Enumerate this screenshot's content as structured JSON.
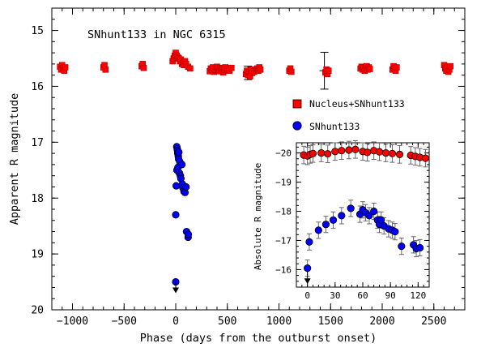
{
  "chart_data": [
    {
      "type": "scatter",
      "title": "SNhunt133 in NGC 6315",
      "xlabel": "Phase (days from the outburst onset)",
      "ylabel": "Apparent R magnitude",
      "xlim": [
        -1200,
        2800
      ],
      "ylim": [
        20,
        14.6
      ],
      "y_inverted": true,
      "x_ticks": [
        -1000,
        -500,
        0,
        500,
        1000,
        1500,
        2000,
        2500
      ],
      "y_ticks": [
        15,
        16,
        17,
        18,
        19,
        20
      ],
      "x_tick_labels": [
        "−1000",
        "−500",
        "0",
        "500",
        "1000",
        "1500",
        "2000",
        "2500"
      ],
      "y_tick_labels": [
        "15",
        "16",
        "17",
        "18",
        "19",
        "20"
      ],
      "legend_placement": "right",
      "series": [
        {
          "name": "Nucleus+SNhunt133",
          "marker": "square",
          "color": "#ff0000",
          "x": [
            -1120,
            -1110,
            -1100,
            -1090,
            -1080,
            -1070,
            -700,
            -690,
            -680,
            -330,
            -320,
            -310,
            -30,
            -20,
            -10,
            0,
            10,
            20,
            30,
            40,
            50,
            60,
            70,
            80,
            90,
            100,
            120,
            140,
            330,
            340,
            350,
            360,
            370,
            380,
            390,
            400,
            410,
            420,
            430,
            440,
            450,
            460,
            470,
            480,
            500,
            520,
            540,
            680,
            690,
            700,
            710,
            720,
            730,
            740,
            760,
            780,
            790,
            800,
            810,
            820,
            1100,
            1110,
            1120,
            1450,
            1460,
            1470,
            1480,
            1790,
            1800,
            1810,
            1820,
            1830,
            1840,
            1850,
            1860,
            1870,
            1880,
            2100,
            2110,
            2120,
            2130,
            2140,
            2600,
            2610,
            2620,
            2630,
            2640,
            2650,
            2660
          ],
          "y": [
            15.65,
            15.7,
            15.62,
            15.68,
            15.72,
            15.66,
            15.66,
            15.62,
            15.7,
            15.64,
            15.6,
            15.67,
            15.55,
            15.5,
            15.45,
            15.4,
            15.45,
            15.48,
            15.5,
            15.55,
            15.52,
            15.6,
            15.58,
            15.62,
            15.55,
            15.6,
            15.65,
            15.68,
            15.73,
            15.68,
            15.71,
            15.66,
            15.74,
            15.69,
            15.72,
            15.65,
            15.7,
            15.73,
            15.67,
            15.71,
            15.68,
            15.75,
            15.7,
            15.66,
            15.69,
            15.72,
            15.67,
            15.78,
            15.72,
            15.8,
            15.75,
            15.82,
            15.7,
            15.76,
            15.74,
            15.7,
            15.68,
            15.72,
            15.66,
            15.7,
            15.72,
            15.68,
            15.74,
            15.75,
            15.7,
            15.78,
            15.72,
            15.68,
            15.65,
            15.7,
            15.66,
            15.72,
            15.68,
            15.64,
            15.7,
            15.66,
            15.69,
            15.7,
            15.64,
            15.68,
            15.72,
            15.66,
            15.62,
            15.68,
            15.72,
            15.66,
            15.74,
            15.7,
            15.64
          ],
          "errorbars": [
            {
              "x": 1440,
              "y": 15.72,
              "yerr": 0.33
            },
            {
              "x": 700,
              "y": 15.76,
              "yerr": 0.12
            }
          ]
        },
        {
          "name": "SNhunt133",
          "marker": "circle",
          "color": "#0000ff",
          "x": [
            0,
            0,
            5,
            10,
            12,
            15,
            18,
            20,
            22,
            25,
            28,
            30,
            35,
            40,
            45,
            50,
            60,
            65,
            70,
            80,
            90,
            100,
            105,
            120,
            122
          ],
          "y": [
            19.5,
            18.3,
            17.78,
            17.08,
            17.5,
            17.12,
            17.15,
            17.2,
            17.45,
            17.25,
            17.3,
            17.18,
            17.55,
            17.35,
            17.6,
            17.65,
            17.4,
            17.75,
            17.82,
            17.88,
            17.9,
            17.8,
            18.6,
            18.7,
            18.65
          ],
          "upper_limit": {
            "x": 0,
            "y": 19.6
          }
        }
      ]
    },
    {
      "type": "scatter",
      "title": "",
      "xlabel": "",
      "ylabel": "Absolute R magnitude",
      "xlim": [
        -12,
        132
      ],
      "ylim": [
        -15.4,
        -20.35
      ],
      "y_inverted": true,
      "x_ticks": [
        0,
        30,
        60,
        90,
        120
      ],
      "y_ticks": [
        -16,
        -17,
        -18,
        -19,
        -20
      ],
      "x_tick_labels": [
        "0",
        "30",
        "60",
        "90",
        "120"
      ],
      "y_tick_labels": [
        "−16",
        "−17",
        "−18",
        "−19",
        "−20"
      ],
      "series": [
        {
          "name": "",
          "marker": "circle",
          "color": "#ff0000",
          "x": [
            -4,
            0,
            3,
            6,
            15,
            22,
            30,
            37,
            45,
            52,
            60,
            65,
            72,
            78,
            85,
            92,
            100,
            112,
            117,
            122,
            128
          ],
          "y": [
            -19.93,
            -19.9,
            -19.95,
            -19.98,
            -20.0,
            -19.97,
            -20.05,
            -20.08,
            -20.1,
            -20.12,
            -20.05,
            -20.02,
            -20.08,
            -20.04,
            -20.0,
            -19.98,
            -19.95,
            -19.92,
            -19.88,
            -19.85,
            -19.82
          ],
          "yerr": 0.3
        },
        {
          "name": "",
          "marker": "circle",
          "color": "#0000ff",
          "x": [
            0,
            2,
            12,
            20,
            28,
            37,
            47,
            57,
            60,
            63,
            67,
            72,
            76,
            78,
            80,
            83,
            88,
            92,
            95,
            102,
            115,
            118,
            122
          ],
          "y": [
            -16.05,
            -16.95,
            -17.35,
            -17.55,
            -17.7,
            -17.85,
            -18.1,
            -17.9,
            -18.05,
            -17.95,
            -17.85,
            -18.0,
            -17.7,
            -17.55,
            -17.7,
            -17.5,
            -17.4,
            -17.35,
            -17.3,
            -16.8,
            -16.85,
            -16.72,
            -16.75
          ],
          "yerr": 0.28,
          "upper_limit": {
            "x": 0,
            "y": -15.7
          }
        }
      ]
    }
  ]
}
